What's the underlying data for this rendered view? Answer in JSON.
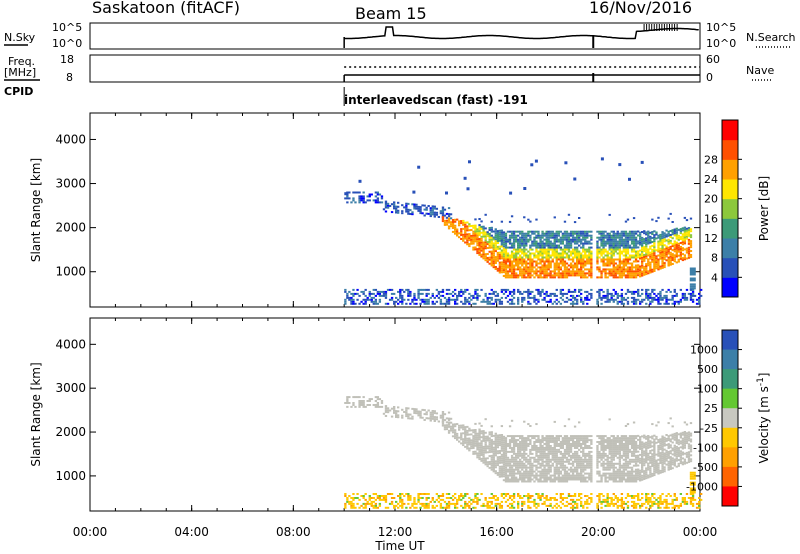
{
  "header": {
    "station": "Saskatoon (fitACF)",
    "beam": "Beam 15",
    "date": "16/Nov/2016"
  },
  "top_panels": {
    "nsky_label": "N.Sky",
    "nsky_ticks": [
      "10^5",
      "10^0"
    ],
    "nsearch_label": "N.Search",
    "nsearch_ticks": [
      "10^5",
      "10^0"
    ],
    "freq_label_1": "Freq.",
    "freq_label_2": "[MHz]",
    "freq_ticks": [
      "18",
      "8"
    ],
    "nave_label": "Nave",
    "nave_ticks": [
      "60",
      "0"
    ],
    "cpid_label": "CPID",
    "cpid_text": "interleavedscan (fast) -191"
  },
  "colors": {
    "power_scale": [
      "#0000ff",
      "#2850b8",
      "#3c7fa8",
      "#3c9a78",
      "#8cc83c",
      "#ffe600",
      "#ffa000",
      "#ff5000",
      "#ff0000"
    ],
    "velocity_scale": [
      "#2850b8",
      "#3c7fa8",
      "#3c9a78",
      "#64c832",
      "#c8c8c0",
      "#ffc800",
      "#ffa000",
      "#ff6400",
      "#ff0000"
    ],
    "ground_scatter": "#c0c0b8"
  },
  "chart_data": [
    {
      "type": "heatmap",
      "title": "Power",
      "xlabel": "Time UT",
      "ylabel": "Slant Range [km]",
      "x_ticks": [
        "00:00",
        "04:00",
        "08:00",
        "12:00",
        "16:00",
        "20:00",
        "00:00"
      ],
      "y_ticks": [
        "1000",
        "2000",
        "3000",
        "4000"
      ],
      "xlim": [
        0,
        24
      ],
      "ylim": [
        200,
        4600
      ],
      "colorbar_label": "Power [dB]",
      "colorbar_ticks": [
        "4",
        "8",
        "12",
        "16",
        "20",
        "24",
        "28"
      ],
      "colorbar_range": [
        0,
        32
      ],
      "data_start_hour": 10.0,
      "data_end_hour": 24.0,
      "structures": [
        {
          "name": "E-region band",
          "start": 10.0,
          "end": 24.0,
          "range_km": [
            300,
            600
          ],
          "power_db": 6
        },
        {
          "name": "early echoes",
          "start": 10.0,
          "end": 14.0,
          "range_km": [
            2400,
            2800
          ],
          "power_db": 5
        },
        {
          "name": "F-region strong band",
          "start": 14.0,
          "end": 23.5,
          "range_km": [
            900,
            1300
          ],
          "power_db": 28
        },
        {
          "name": "F-region upper band",
          "start": 14.0,
          "end": 23.5,
          "range_km": [
            1300,
            1900
          ],
          "power_db": 12
        }
      ]
    },
    {
      "type": "heatmap",
      "title": "Velocity",
      "xlabel": "Time UT",
      "ylabel": "Slant Range [km]",
      "x_ticks": [
        "00:00",
        "04:00",
        "08:00",
        "12:00",
        "16:00",
        "20:00",
        "00:00"
      ],
      "y_ticks": [
        "1000",
        "2000",
        "3000",
        "4000"
      ],
      "xlim": [
        0,
        24
      ],
      "ylim": [
        200,
        4600
      ],
      "colorbar_label": "Velocity [m s^-1]",
      "colorbar_ticks": [
        "1000",
        "500",
        "100",
        "25",
        "-25",
        "-100",
        "-500",
        "-1000"
      ],
      "ground_scatter_region": {
        "start": 14.0,
        "end": 23.5,
        "range_km": [
          800,
          2000
        ]
      }
    }
  ],
  "x_axis_title": "Time UT",
  "y_axis_title": "Slant Range [km]",
  "power_cb_title": "Power [dB]",
  "velocity_cb_title_main": "Velocity [m s",
  "velocity_cb_title_sup": "-1",
  "velocity_cb_title_end": "]"
}
